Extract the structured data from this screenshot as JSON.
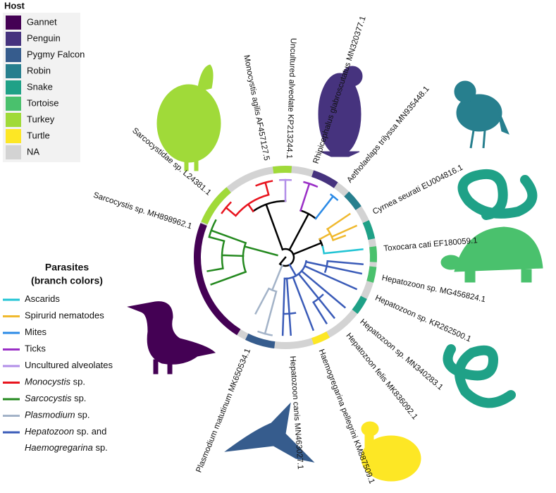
{
  "host_legend": {
    "title": "Host",
    "items": [
      {
        "label": "Gannet",
        "color": "#440154"
      },
      {
        "label": "Penguin",
        "color": "#46337e"
      },
      {
        "label": "Pygmy Falcon",
        "color": "#365c8d"
      },
      {
        "label": "Robin",
        "color": "#277f8e"
      },
      {
        "label": "Snake",
        "color": "#1fa187"
      },
      {
        "label": "Tortoise",
        "color": "#4ac16d"
      },
      {
        "label": "Turkey",
        "color": "#a0da39"
      },
      {
        "label": "Turtle",
        "color": "#fde725"
      },
      {
        "label": "NA",
        "color": "#d3d3d3"
      }
    ]
  },
  "parasite_legend": {
    "title": [
      "Parasites",
      "(branch colors)"
    ],
    "items": [
      {
        "parts": [
          {
            "text": "Ascarids",
            "italic": false
          }
        ],
        "color": "#22c4d4"
      },
      {
        "parts": [
          {
            "text": "Spirurid nematodes",
            "italic": false
          }
        ],
        "color": "#f0b92e"
      },
      {
        "parts": [
          {
            "text": "Mites",
            "italic": false
          }
        ],
        "color": "#2b8ae6"
      },
      {
        "parts": [
          {
            "text": "Ticks",
            "italic": false
          }
        ],
        "color": "#9a2fc6"
      },
      {
        "parts": [
          {
            "text": "Uncultured alveolates",
            "italic": false
          }
        ],
        "color": "#b28ee8"
      },
      {
        "parts": [
          {
            "text": "Monocystis",
            "italic": true
          },
          {
            "text": " sp.",
            "italic": false
          }
        ],
        "color": "#e8141e"
      },
      {
        "parts": [
          {
            "text": "Sarcocystis",
            "italic": true
          },
          {
            "text": " sp.",
            "italic": false
          }
        ],
        "color": "#24891f"
      },
      {
        "parts": [
          {
            "text": "Plasmodium",
            "italic": true
          },
          {
            "text": " sp.",
            "italic": false
          }
        ],
        "color": "#a3b3c8"
      },
      {
        "parts": [
          {
            "text": "Hepatozoon",
            "italic": true
          },
          {
            "text": " sp. and",
            "italic": false
          },
          {
            "text": "Haemogregarina",
            "italic": true
          },
          {
            "text": " sp.",
            "italic": false
          }
        ],
        "color": "#3a5bb8"
      }
    ]
  },
  "tips": [
    "Sarcocystis sp. MH898962.1",
    "Sarcocystidae sp. L24381.1",
    "Monocystis agilis AF457127.5",
    "Uncultured alveolate KP213244.1",
    "Rhipicephalus glabroscutatus MN320377.1",
    "Aetholaelaps trilyssa MN935448.1",
    "Cyrnea seurati EU004816.1",
    "Toxocara cati EF180059.1",
    "Hepatozoon sp. MG456824.1",
    "Hepatozoon sp. KR262500.1",
    "Hepatozoon sp. MN340283.1",
    "Hepatozoon felis MK836092.1",
    "Haemogregarina pellegrini KM887509.1",
    "Hepatozoon canis MN463027.1",
    "Plasmodium matutinum MK650534.1"
  ]
}
